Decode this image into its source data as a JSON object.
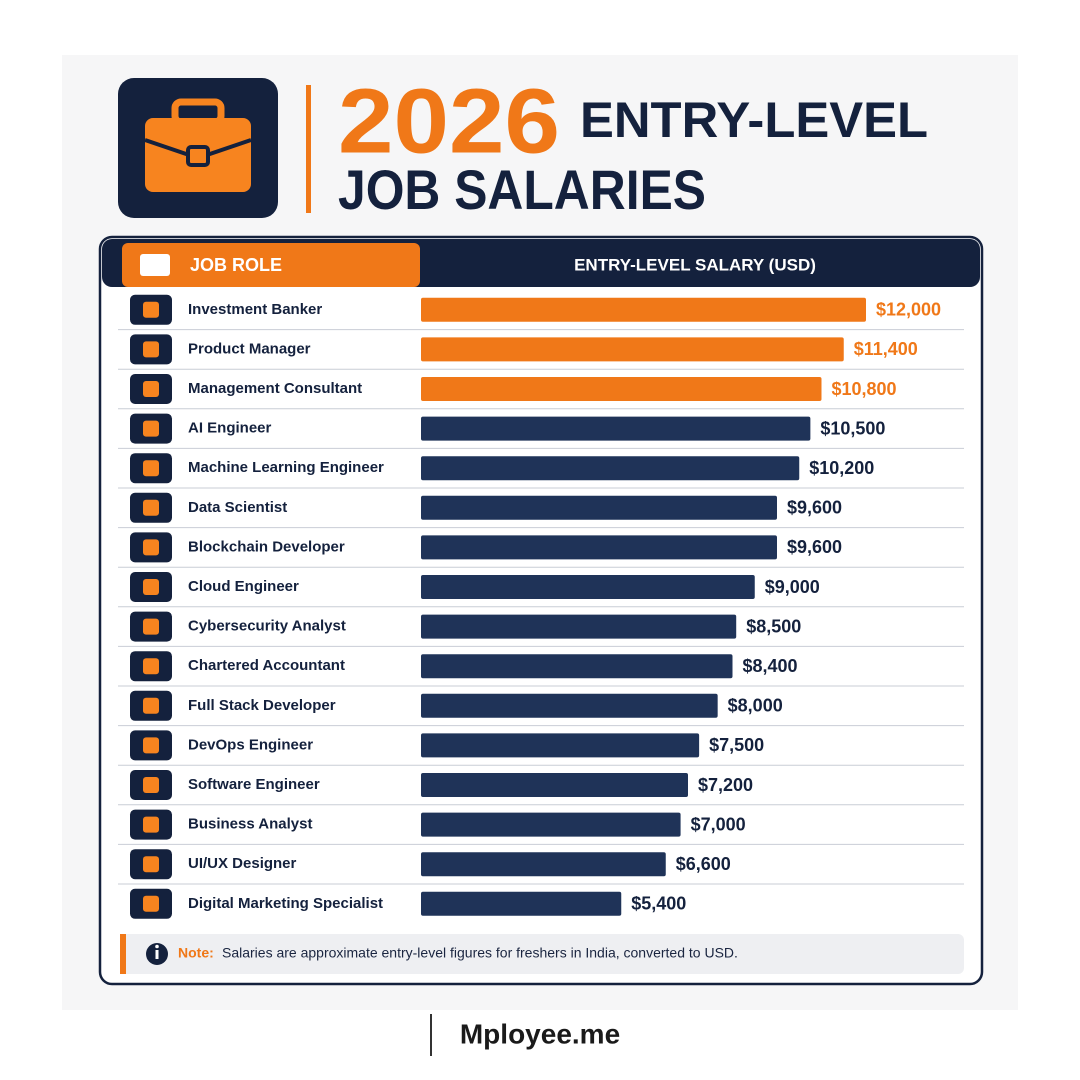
{
  "chart_data": {
    "type": "bar",
    "orientation": "horizontal",
    "title_year": "2026",
    "title_line1": "ENTRY-LEVEL",
    "title_line2": "JOB SALARIES",
    "category_header": "JOB ROLE",
    "value_header": "ENTRY-LEVEL SALARY (USD)",
    "categories": [
      "Investment Banker",
      "Product Manager",
      "Management Consultant",
      "AI Engineer",
      "Machine Learning Engineer",
      "Data Scientist",
      "Blockchain Developer",
      "Cloud Engineer",
      "Cybersecurity Analyst",
      "Chartered Accountant",
      "Full Stack Developer",
      "DevOps Engineer",
      "Software Engineer",
      "Business Analyst",
      "UI/UX Designer",
      "Digital Marketing Specialist"
    ],
    "values": [
      12000,
      11400,
      10800,
      10500,
      10200,
      9600,
      9600,
      9000,
      8500,
      8400,
      8000,
      7500,
      7200,
      7000,
      6600,
      5400
    ],
    "value_labels": [
      "$12,000",
      "$11,400",
      "$10,800",
      "$10,500",
      "$10,200",
      "$9,600",
      "$9,600",
      "$9,000",
      "$8,500",
      "$8,400",
      "$8,000",
      "$7,500",
      "$7,200",
      "$7,000",
      "$6,600",
      "$5,400"
    ],
    "colors": [
      "#f07818",
      "#f07818",
      "#f07818",
      "#1f3358",
      "#1f3358",
      "#1f3358",
      "#1f3358",
      "#1f3358",
      "#1f3358",
      "#1f3358",
      "#1f3358",
      "#1f3358",
      "#1f3358",
      "#1f3358",
      "#1f3358",
      "#1f3358"
    ],
    "note_label": "Note:",
    "note": "Salaries are approximate entry-level figures for freshers in India, converted to USD.",
    "brand": "Mployee.me"
  }
}
